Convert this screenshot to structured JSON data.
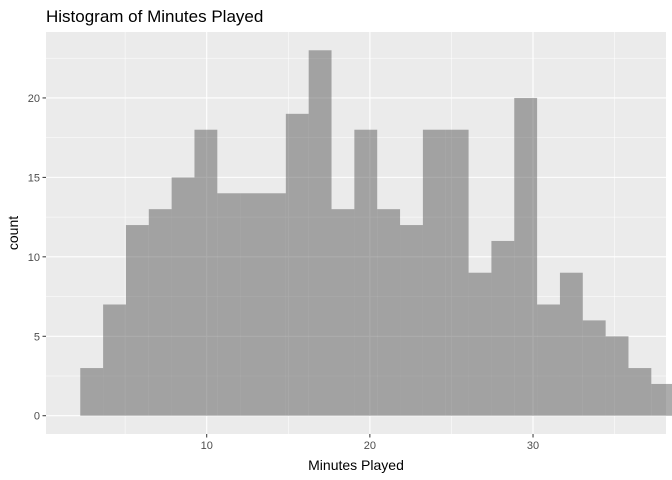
{
  "chart_data": {
    "type": "bar",
    "title": "Histogram of Minutes Played",
    "xlabel": "Minutes Played",
    "ylabel": "count",
    "xlim": [
      0.15,
      38.15
    ],
    "ylim": [
      -1.15,
      24.15
    ],
    "x_ticks": [
      10,
      20,
      30
    ],
    "y_ticks": [
      0,
      5,
      10,
      15,
      20
    ],
    "bin_start": 2.25,
    "bin_width": 1.4,
    "values": [
      3,
      7,
      12,
      13,
      15,
      18,
      14,
      14,
      14,
      19,
      23,
      13,
      18,
      13,
      12,
      18,
      18,
      9,
      11,
      20,
      7,
      9,
      6,
      5,
      3,
      2
    ],
    "grid": true,
    "legend": "none",
    "bar_color": "#a3a3a3",
    "panel_color": "#ebebeb",
    "grid_color": "#ffffff"
  }
}
